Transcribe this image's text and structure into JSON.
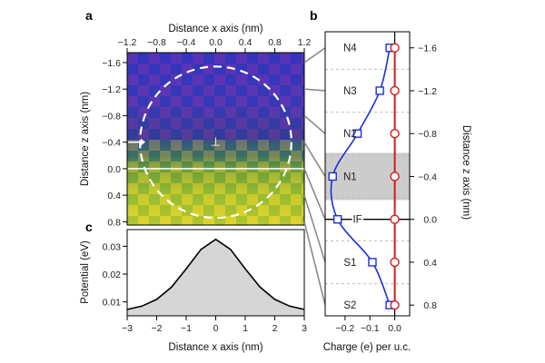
{
  "panel_labels": {
    "a": "a",
    "b": "b",
    "c": "c"
  },
  "chart_data": [
    {
      "panel": "a",
      "type": "heatmap",
      "xlabel": "Distance x axis (nm)",
      "ylabel": "Distance z axis (nm)",
      "xlim": [
        -1.2,
        1.2
      ],
      "ylim": [
        -1.75,
        0.85
      ],
      "xticks": [
        -1.2,
        -0.8,
        -0.4,
        0.0,
        0.4,
        0.8,
        1.2
      ],
      "xtick_labels": [
        "−1.2",
        "−0.8",
        "−0.4",
        "0.0",
        "0.4",
        "0.8",
        "1.2"
      ],
      "yticks": [
        -1.6,
        -1.2,
        -0.8,
        -0.4,
        0.0,
        0.4,
        0.8
      ],
      "ytick_labels": [
        "−1.6",
        "−1.2",
        "−0.8",
        "−0.4",
        "0.0",
        "0.4",
        "0.8"
      ],
      "annotations": {
        "interface_z": 0.0,
        "circle_center": [
          0.0,
          -0.4
        ],
        "circle_radius": 1.2,
        "dislocation_symbol": "⊥",
        "dislocation_pos": [
          0.0,
          -0.4
        ]
      }
    },
    {
      "panel": "b",
      "type": "line",
      "xlabel": "Charge (e) per u.c.",
      "ylabel": "Distance z axis (nm)",
      "xlim": [
        -0.28,
        0.06
      ],
      "ylim": [
        -1.75,
        0.9
      ],
      "xticks": [
        -0.2,
        -0.1,
        0.0
      ],
      "xtick_labels": [
        "−0.2",
        "−0.1",
        "0.0"
      ],
      "yticks": [
        -1.6,
        -1.2,
        -0.8,
        -0.4,
        0.0,
        0.4,
        0.8
      ],
      "ytick_labels": [
        "−1.6",
        "−1.2",
        "−0.8",
        "−0.4",
        "0.0",
        "0.4",
        "0.8"
      ],
      "layer_labels": [
        "N4",
        "N3",
        "N2",
        "N1",
        "IF",
        "S1",
        "S2"
      ],
      "z": [
        -1.6,
        -1.2,
        -0.8,
        -0.4,
        0.0,
        0.4,
        0.8
      ],
      "highlight_band": [
        -0.62,
        -0.18
      ],
      "series": [
        {
          "color": "#1a2fd6",
          "marker": "square",
          "x": [
            -0.02,
            -0.06,
            -0.15,
            -0.25,
            -0.23,
            -0.09,
            -0.02
          ],
          "y": [
            -1.6,
            -1.2,
            -0.8,
            -0.4,
            0.0,
            0.4,
            0.8
          ]
        },
        {
          "color": "#d21a1a",
          "marker": "circle",
          "x": [
            0.0,
            0.0,
            0.0,
            0.0,
            0.0,
            0.0,
            0.0
          ],
          "y": [
            -1.6,
            -1.2,
            -0.8,
            -0.4,
            0.0,
            0.4,
            0.8
          ]
        }
      ]
    },
    {
      "panel": "c",
      "type": "area",
      "xlabel": "Distance x axis (nm)",
      "ylabel": "Potential (eV)",
      "xlim": [
        -3,
        3
      ],
      "ylim": [
        0.005,
        0.036
      ],
      "xticks": [
        -3,
        -2,
        -1,
        0,
        1,
        2,
        3
      ],
      "xtick_labels": [
        "−3",
        "−2",
        "−1",
        "0",
        "1",
        "2",
        "3"
      ],
      "yticks": [
        0.01,
        0.02,
        0.03
      ],
      "ytick_labels": [
        "0.01",
        "0.02",
        "0.03"
      ],
      "x": [
        -3.0,
        -2.5,
        -2.0,
        -1.5,
        -1.0,
        -0.5,
        0.0,
        0.5,
        1.0,
        1.5,
        2.0,
        2.5,
        3.0
      ],
      "y": [
        0.0073,
        0.0085,
        0.0109,
        0.0153,
        0.0219,
        0.0289,
        0.0325,
        0.0289,
        0.0219,
        0.0153,
        0.0109,
        0.0085,
        0.0073
      ],
      "colors": {
        "fill": "#d6d6d6",
        "line": "#000000"
      }
    }
  ]
}
